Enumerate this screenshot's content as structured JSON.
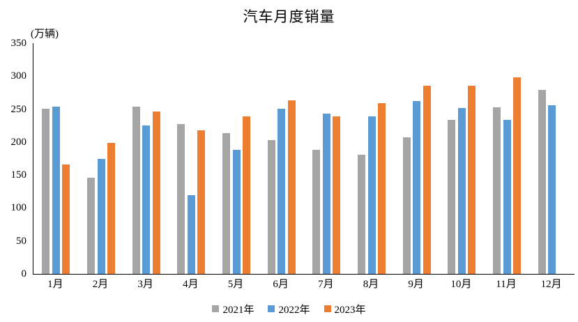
{
  "chart_data": {
    "type": "bar",
    "title": "汽车月度销量",
    "ylabel": "(万辆)",
    "xlabel": "",
    "categories": [
      "1月",
      "2月",
      "3月",
      "4月",
      "5月",
      "6月",
      "7月",
      "8月",
      "9月",
      "10月",
      "11月",
      "12月"
    ],
    "series": [
      {
        "name": "2021年",
        "color": "#A5A5A5",
        "values": [
          251,
          146,
          254,
          227,
          214,
          203,
          188,
          181,
          207,
          234,
          253,
          279
        ]
      },
      {
        "name": "2022年",
        "color": "#5B9BD5",
        "values": [
          254,
          175,
          225,
          119,
          188,
          251,
          243,
          239,
          262,
          252,
          234,
          256
        ]
      },
      {
        "name": "2023年",
        "color": "#ED7D31",
        "values": [
          166,
          199,
          246,
          218,
          239,
          263,
          239,
          259,
          286,
          286,
          298,
          null
        ]
      }
    ],
    "ylim": [
      0,
      350
    ],
    "y_ticks": [
      0,
      50,
      100,
      150,
      200,
      250,
      300,
      350
    ],
    "grid": false,
    "legend_position": "bottom",
    "axis_color": "#000000",
    "text_color": "#000000"
  }
}
